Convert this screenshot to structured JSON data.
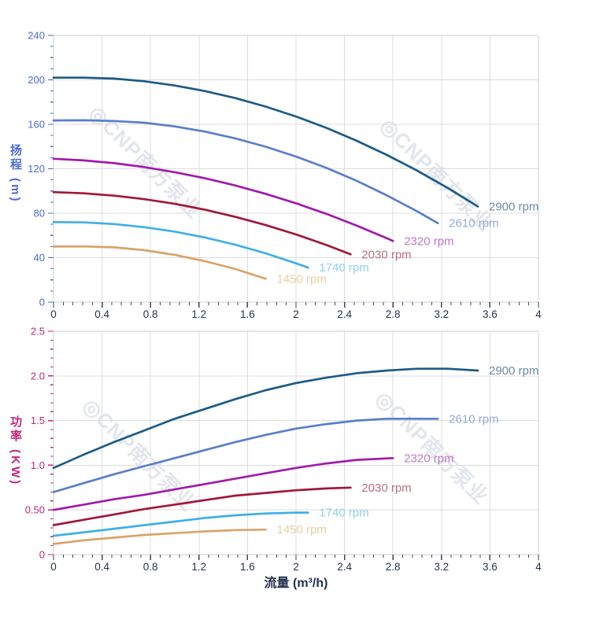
{
  "watermark": {
    "logo": "◎",
    "text": "CNP南方泵业",
    "display": "◎CNP南方泵业",
    "color": "#ccd2dd"
  },
  "colors": {
    "grid": "#dcdcdc",
    "frame": "#c9cdd4",
    "x_tick": "#3f4651",
    "x_tick_label": "#243250",
    "head_axis": "#4a6bd4",
    "power_axis": "#c2267c"
  },
  "chart_data": [
    {
      "type": "line",
      "title": "",
      "xlabel": "",
      "ylabel": "扬程 (m)",
      "xlim": [
        0,
        4
      ],
      "ylim": [
        0,
        240
      ],
      "x_major_step": 0.4,
      "x_minor_per_major": 4,
      "y_major_step": 40,
      "y_minor_per_major": 3,
      "x_tick_labels": [
        "0",
        "0.4",
        "0.8",
        "1.2",
        "1.6",
        "2",
        "2.4",
        "2.8",
        "3.2",
        "3.6",
        "4"
      ],
      "y_tick_labels": [
        "0",
        "40",
        "80",
        "120",
        "160",
        "200",
        "240"
      ],
      "axis_color": "#4a6bd4",
      "grid": true,
      "legend": "end-labels",
      "series": [
        {
          "name": "2900 rpm",
          "color": "#1d5b87",
          "label_color": "#6d89a6",
          "points": [
            [
              0,
              202
            ],
            [
              0.25,
              202
            ],
            [
              0.5,
              201.1
            ],
            [
              0.75,
              198.7
            ],
            [
              1,
              194.9
            ],
            [
              1.25,
              189.9
            ],
            [
              1.5,
              183.6
            ],
            [
              1.75,
              175.9
            ],
            [
              2,
              167
            ],
            [
              2.25,
              156.8
            ],
            [
              2.5,
              145.2
            ],
            [
              2.75,
              132.4
            ],
            [
              3,
              118.3
            ],
            [
              3.25,
              102.8
            ],
            [
              3.5,
              86
            ]
          ]
        },
        {
          "name": "2610 rpm",
          "color": "#5a7ec9",
          "label_color": "#93a9e0",
          "points": [
            [
              0,
              163.5
            ],
            [
              0.25,
              163.6
            ],
            [
              0.5,
              163
            ],
            [
              0.75,
              161.4
            ],
            [
              1,
              158.1
            ],
            [
              1.25,
              153.4
            ],
            [
              1.5,
              147.3
            ],
            [
              1.75,
              139.8
            ],
            [
              2,
              131
            ],
            [
              2.25,
              120.8
            ],
            [
              2.5,
              109.2
            ],
            [
              2.75,
              96
            ],
            [
              3,
              81.6
            ],
            [
              3.17,
              71
            ]
          ]
        },
        {
          "name": "2320 rpm",
          "color": "#a11ba8",
          "label_color": "#bd7ac6",
          "points": [
            [
              0,
              129
            ],
            [
              0.25,
              127.5
            ],
            [
              0.5,
              125
            ],
            [
              0.75,
              121.5
            ],
            [
              1,
              116.9
            ],
            [
              1.25,
              111.4
            ],
            [
              1.5,
              104.9
            ],
            [
              1.75,
              97.4
            ],
            [
              2,
              88.9
            ],
            [
              2.25,
              79.4
            ],
            [
              2.5,
              68.9
            ],
            [
              2.75,
              57.4
            ],
            [
              2.8,
              55
            ]
          ]
        },
        {
          "name": "2030 rpm",
          "color": "#a01838",
          "label_color": "#b66f7f",
          "points": [
            [
              0,
              99
            ],
            [
              0.25,
              97.9
            ],
            [
              0.5,
              95.8
            ],
            [
              0.75,
              92.6
            ],
            [
              1,
              88.4
            ],
            [
              1.25,
              83.1
            ],
            [
              1.5,
              76.7
            ],
            [
              1.75,
              69.3
            ],
            [
              2,
              60.9
            ],
            [
              2.25,
              51.4
            ],
            [
              2.45,
              43
            ]
          ]
        },
        {
          "name": "1740 rpm",
          "color": "#3eb0e6",
          "label_color": "#90d0f0",
          "points": [
            [
              0,
              72
            ],
            [
              0.25,
              71.7
            ],
            [
              0.5,
              70.2
            ],
            [
              0.75,
              67.4
            ],
            [
              1,
              63.4
            ],
            [
              1.25,
              58.1
            ],
            [
              1.5,
              51.6
            ],
            [
              1.75,
              43.9
            ],
            [
              2,
              34.9
            ],
            [
              2.1,
              31
            ]
          ]
        },
        {
          "name": "1450 rpm",
          "color": "#d8a469",
          "label_color": "#e7cfa4",
          "points": [
            [
              0,
              50
            ],
            [
              0.25,
              50.1
            ],
            [
              0.5,
              49.3
            ],
            [
              0.75,
              46.7
            ],
            [
              1,
              42.5
            ],
            [
              1.25,
              36.8
            ],
            [
              1.5,
              29.7
            ],
            [
              1.75,
              21
            ]
          ]
        }
      ]
    },
    {
      "type": "line",
      "title": "",
      "xlabel": "流量 (m³/h)",
      "ylabel": "功率 (KW)",
      "xlim": [
        0,
        4
      ],
      "ylim": [
        0,
        2.5
      ],
      "x_major_step": 0.4,
      "x_minor_per_major": 4,
      "y_major_step": 0.5,
      "y_minor_per_major": 4,
      "x_tick_labels": [
        "0",
        "0.4",
        "0.8",
        "1.2",
        "1.6",
        "2",
        "2.4",
        "2.8",
        "3.2",
        "3.6",
        "4"
      ],
      "y_tick_labels": [
        "0",
        "0.50",
        "1.0",
        "1.5",
        "2.0",
        "2.5"
      ],
      "axis_color": "#c2267c",
      "grid": true,
      "legend": "end-labels",
      "series": [
        {
          "name": "2900 rpm",
          "color": "#1d5b87",
          "label_color": "#6d89a6",
          "points": [
            [
              0,
              0.97
            ],
            [
              0.25,
              1.12
            ],
            [
              0.5,
              1.26
            ],
            [
              0.75,
              1.39
            ],
            [
              1,
              1.52
            ],
            [
              1.25,
              1.63
            ],
            [
              1.5,
              1.74
            ],
            [
              1.75,
              1.84
            ],
            [
              2,
              1.92
            ],
            [
              2.25,
              1.98
            ],
            [
              2.5,
              2.03
            ],
            [
              2.75,
              2.06
            ],
            [
              3,
              2.08
            ],
            [
              3.25,
              2.08
            ],
            [
              3.5,
              2.06
            ]
          ]
        },
        {
          "name": "2610 rpm",
          "color": "#5a7ec9",
          "label_color": "#93a9e0",
          "points": [
            [
              0,
              0.7
            ],
            [
              0.25,
              0.8
            ],
            [
              0.5,
              0.9
            ],
            [
              0.75,
              0.99
            ],
            [
              1,
              1.08
            ],
            [
              1.25,
              1.17
            ],
            [
              1.5,
              1.26
            ],
            [
              1.75,
              1.34
            ],
            [
              2,
              1.41
            ],
            [
              2.25,
              1.46
            ],
            [
              2.5,
              1.5
            ],
            [
              2.75,
              1.52
            ],
            [
              3,
              1.52
            ],
            [
              3.17,
              1.52
            ]
          ]
        },
        {
          "name": "2320 rpm",
          "color": "#a11ba8",
          "label_color": "#bd7ac6",
          "points": [
            [
              0,
              0.5
            ],
            [
              0.25,
              0.56
            ],
            [
              0.5,
              0.62
            ],
            [
              0.75,
              0.67
            ],
            [
              1,
              0.73
            ],
            [
              1.25,
              0.79
            ],
            [
              1.5,
              0.85
            ],
            [
              1.75,
              0.91
            ],
            [
              2,
              0.97
            ],
            [
              2.25,
              1.02
            ],
            [
              2.5,
              1.06
            ],
            [
              2.8,
              1.08
            ]
          ]
        },
        {
          "name": "2030 rpm",
          "color": "#a01838",
          "label_color": "#b66f7f",
          "points": [
            [
              0,
              0.33
            ],
            [
              0.25,
              0.39
            ],
            [
              0.5,
              0.45
            ],
            [
              0.75,
              0.51
            ],
            [
              1,
              0.56
            ],
            [
              1.25,
              0.61
            ],
            [
              1.5,
              0.66
            ],
            [
              1.75,
              0.69
            ],
            [
              2,
              0.72
            ],
            [
              2.25,
              0.74
            ],
            [
              2.45,
              0.75
            ]
          ]
        },
        {
          "name": "1740 rpm",
          "color": "#3eb0e6",
          "label_color": "#90d0f0",
          "points": [
            [
              0,
              0.21
            ],
            [
              0.25,
              0.25
            ],
            [
              0.5,
              0.29
            ],
            [
              0.75,
              0.33
            ],
            [
              1,
              0.37
            ],
            [
              1.25,
              0.41
            ],
            [
              1.5,
              0.44
            ],
            [
              1.75,
              0.46
            ],
            [
              2,
              0.47
            ],
            [
              2.1,
              0.47
            ]
          ]
        },
        {
          "name": "1450 rpm",
          "color": "#d8a469",
          "label_color": "#e7cfa4",
          "points": [
            [
              0,
              0.12
            ],
            [
              0.25,
              0.16
            ],
            [
              0.5,
              0.19
            ],
            [
              0.75,
              0.22
            ],
            [
              1,
              0.24
            ],
            [
              1.25,
              0.26
            ],
            [
              1.5,
              0.275
            ],
            [
              1.75,
              0.28
            ]
          ]
        }
      ]
    }
  ]
}
